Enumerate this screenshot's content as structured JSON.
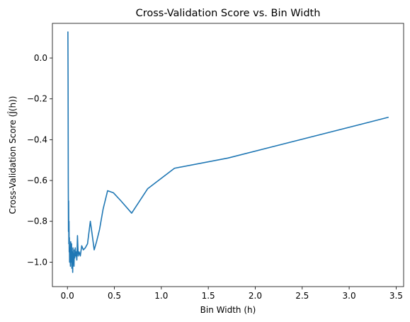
{
  "chart_data": {
    "type": "line",
    "title": "Cross-Validation Score vs. Bin Width",
    "xlabel": "Bin Width (h)",
    "ylabel": "Cross-Validation Score (Ĵ(h))",
    "xlim": [
      -0.16,
      3.58
    ],
    "ylim": [
      -1.12,
      0.17
    ],
    "xticks": [
      0.0,
      0.5,
      1.0,
      1.5,
      2.0,
      2.5,
      3.0,
      3.5
    ],
    "xtick_labels": [
      "0.0",
      "0.5",
      "1.0",
      "1.5",
      "2.0",
      "2.5",
      "3.0",
      "3.5"
    ],
    "yticks": [
      0.0,
      -0.2,
      -0.4,
      -0.6,
      -0.8,
      -1.0
    ],
    "ytick_labels": [
      "0.0",
      "−0.2",
      "−0.4",
      "−0.6",
      "−0.8",
      "−1.0"
    ],
    "grid": false,
    "series": [
      {
        "color": "#1f77b4",
        "x": [
          0.005,
          0.007,
          0.009,
          0.011,
          0.013,
          0.015,
          0.017,
          0.019,
          0.021,
          0.023,
          0.026,
          0.029,
          0.032,
          0.035,
          0.038,
          0.041,
          0.044,
          0.047,
          0.05,
          0.053,
          0.056,
          0.059,
          0.062,
          0.066,
          0.07,
          0.074,
          0.078,
          0.083,
          0.088,
          0.094,
          0.1,
          0.107,
          0.115,
          0.125,
          0.137,
          0.152,
          0.17,
          0.19,
          0.214,
          0.244,
          0.262,
          0.285,
          0.31,
          0.342,
          0.38,
          0.428,
          0.489,
          0.57,
          0.684,
          0.855,
          1.14,
          1.71,
          3.42
        ],
        "y": [
          0.13,
          -0.12,
          -0.6,
          -0.85,
          -0.7,
          -0.91,
          -0.8,
          -0.95,
          -0.88,
          -1.0,
          -0.93,
          -0.98,
          -1.02,
          -0.9,
          -0.97,
          -1.0,
          -0.91,
          -1.03,
          -0.95,
          -0.99,
          -1.05,
          -0.93,
          -1.0,
          -0.96,
          -1.02,
          -0.94,
          -0.98,
          -0.93,
          -0.97,
          -0.95,
          -0.99,
          -0.87,
          -0.97,
          -0.95,
          -0.97,
          -0.92,
          -0.94,
          -0.93,
          -0.91,
          -0.8,
          -0.86,
          -0.94,
          -0.9,
          -0.84,
          -0.74,
          -0.65,
          -0.66,
          -0.7,
          -0.76,
          -0.64,
          -0.54,
          -0.49,
          -0.29
        ]
      }
    ]
  }
}
